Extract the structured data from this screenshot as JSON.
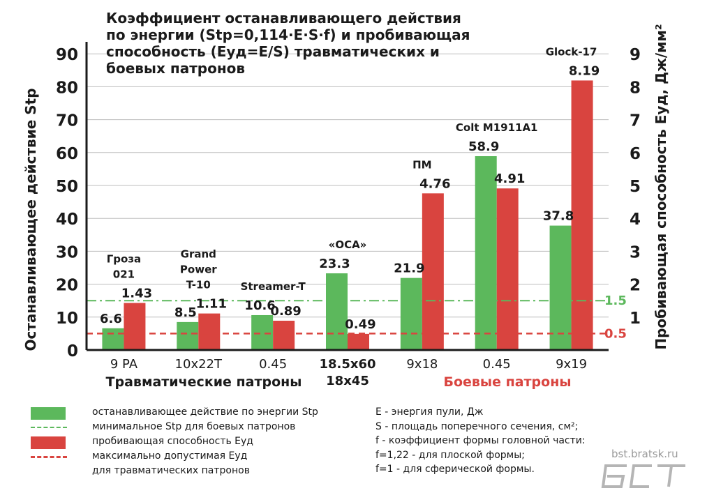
{
  "title_lines": [
    "Коэффициент  останавливающего действия",
    "по энергии (Stp=0,114·E·S·f)  и пробивающая",
    "способность (Eуд=E/S) травматических и",
    "боевых патронов"
  ],
  "axes": {
    "left_title": "Останавливающее действие Stp",
    "right_title": "Пробивающая способность Eуд, Дж/мм²"
  },
  "groups": {
    "traumatic_label": "Травматические патроны",
    "combat_label": "Боевые патроны"
  },
  "colors": {
    "stp": "#5cb85c",
    "eud": "#d9443f",
    "stp_min_line": "#5cb85c",
    "eud_max_line": "#d9443f",
    "combat_label": "#d9443f"
  },
  "chart_data": {
    "type": "bar",
    "categories": [
      "9 PA",
      "10x22T",
      "0.45",
      "18.5x60\n18x45",
      "9x18",
      "0.45",
      "9x19"
    ],
    "cartridge_names": [
      "Гроза\n021",
      "Grand\nPower\nT-10",
      "Streamer-T",
      "«ОСА»",
      "ПМ",
      "Colt M1911A1",
      "Glock-17"
    ],
    "series": [
      {
        "name": "останавливающее действие по энергии Stp",
        "axis": "left",
        "values": [
          6.6,
          8.5,
          10.6,
          23.3,
          21.9,
          58.9,
          37.8
        ]
      },
      {
        "name": "пробивающая способность Eуд",
        "axis": "right",
        "values": [
          1.43,
          1.11,
          0.89,
          0.49,
          4.76,
          4.91,
          8.19
        ]
      }
    ],
    "reference_lines": [
      {
        "name": "минимальное Stp для боевых патронов",
        "axis": "right",
        "value": 1.5,
        "label": "1.5",
        "style": "dash-dot"
      },
      {
        "name": "максимально допустимая Eуд для травматических патронов",
        "axis": "right",
        "value": 0.5,
        "label": "0.5",
        "style": "dashed"
      }
    ],
    "ylim_left": [
      0,
      90
    ],
    "ylim_right": [
      0,
      9
    ],
    "left_ticks": [
      0,
      10,
      20,
      30,
      40,
      50,
      60,
      70,
      80,
      90
    ],
    "right_ticks": [
      1,
      2,
      3,
      4,
      5,
      6,
      7,
      8,
      9
    ],
    "grid": true
  },
  "legend": [
    {
      "kind": "bar",
      "color": "#5cb85c",
      "text": "останавливающее действие по энергии Stp"
    },
    {
      "kind": "dashdot",
      "color": "#5cb85c",
      "text": "минимальное Stp для боевых патронов"
    },
    {
      "kind": "bar",
      "color": "#d9443f",
      "text": "пробивающая способность Eуд"
    },
    {
      "kind": "dashed",
      "color": "#d9443f",
      "text": "максимально допустимая Eуд"
    },
    {
      "kind": "none",
      "color": "",
      "text": "для травматических патронов"
    }
  ],
  "notes": [
    "E - энергия пули, Дж",
    "S - площадь поперечного сечения, см²;",
    "f - коэффициент формы головной части:",
    "f=1,22 - для плоской формы;",
    "f=1 - для сферической формы."
  ],
  "watermark": {
    "url": "bst.bratsk.ru",
    "logo_text": "БСТ"
  }
}
